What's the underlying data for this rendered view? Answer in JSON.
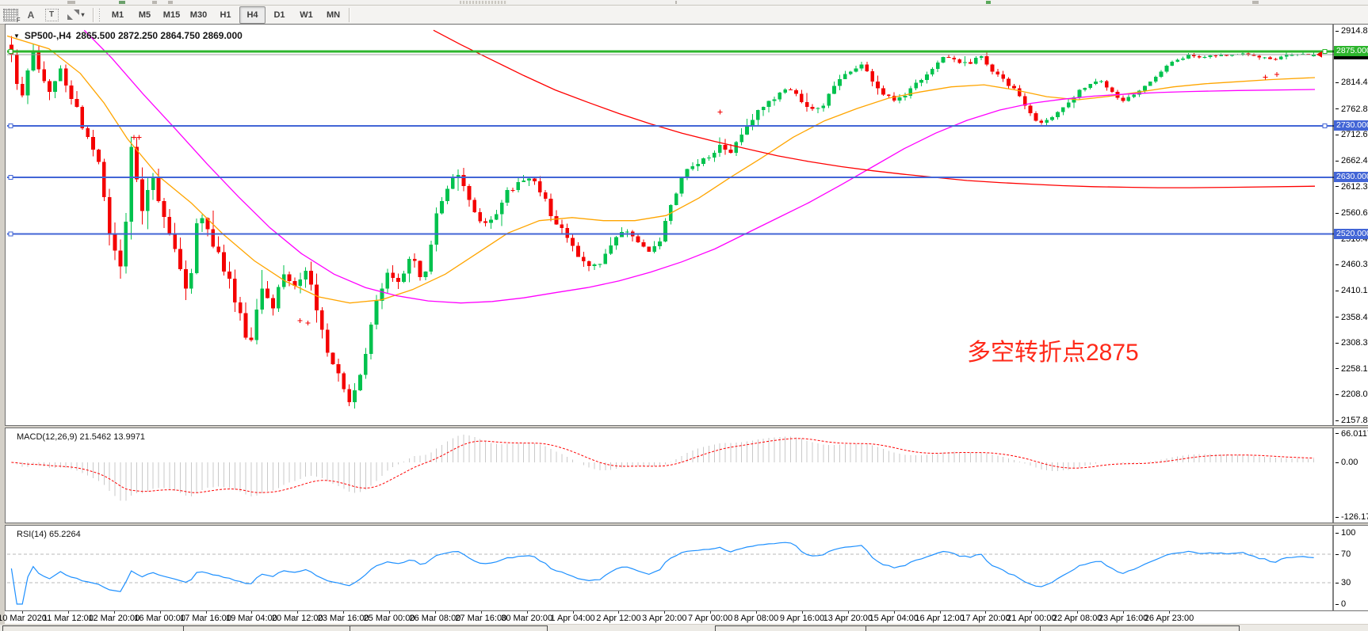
{
  "toolbar": {
    "tools": [
      {
        "name": "grid-pattern-f-icon",
        "glyph": "F"
      },
      {
        "name": "text-a-icon",
        "glyph": "A"
      },
      {
        "name": "text-label-icon",
        "glyph": "T"
      },
      {
        "name": "line-style-icon",
        "glyph": ""
      }
    ],
    "caret": "▾",
    "timeframes": [
      "M1",
      "M5",
      "M15",
      "M30",
      "H1",
      "H4",
      "D1",
      "W1",
      "MN"
    ],
    "active_timeframe": "H4"
  },
  "header": {
    "dropdown_glyph": "▼",
    "symbol_period": "SP500-,H4",
    "ohlc": "2865.500 2872.250 2864.750 2869.000"
  },
  "chart_data": {
    "type": "candlestick",
    "symbol": "SP500-",
    "period": "H4",
    "current_ohlc": {
      "open": 2865.5,
      "high": 2872.25,
      "low": 2864.75,
      "close": 2869.0
    },
    "bar_count": 240,
    "colors": {
      "bull": "#00c24e",
      "bear": "#f40000",
      "ray_green": "#2db52d",
      "ray_blue": "#4265d6",
      "last_price": "#9c9c9c",
      "ma_fast": "#ffa500",
      "ma_mid": "#ff00ff",
      "ma_slow": "#ff0000",
      "macd_hist": "#c9c9c9",
      "macd_signal": "#ff0000",
      "rsi": "#1e90ff",
      "annotation": "#ff2a1a"
    },
    "price_axis": {
      "max": 2914.81,
      "min": 2157.85,
      "ticks": [
        2914.81,
        2814.49,
        2762.81,
        2712.65,
        2662.49,
        2612.33,
        2560.65,
        2510.49,
        2460.33,
        2410.17,
        2358.49,
        2308.33,
        2258.17,
        2208.01,
        2157.85
      ]
    },
    "badges": [
      {
        "label": "2869.000",
        "price": 2869.0,
        "bg": "#000000"
      },
      {
        "label": "2875.000",
        "price": 2875.0,
        "bg": "#2db52d"
      },
      {
        "label": "2730.000",
        "price": 2730.0,
        "bg": "#4265d6"
      },
      {
        "label": "2630.000",
        "price": 2630.0,
        "bg": "#4265d6"
      },
      {
        "label": "2520.000",
        "price": 2520.0,
        "bg": "#4265d6"
      }
    ],
    "horizontal_lines": [
      {
        "price": 2875.0,
        "color": "#2db52d",
        "width": 3,
        "handles": "both"
      },
      {
        "price": 2730.0,
        "color": "#4265d6",
        "width": 2,
        "handles": "both"
      },
      {
        "price": 2630.0,
        "color": "#4265d6",
        "width": 2,
        "handles": "left"
      },
      {
        "price": 2520.0,
        "color": "#4265d6",
        "width": 2,
        "handles": "left"
      }
    ],
    "last_price_line": 2869.0,
    "close_path": [
      [
        0.0,
        2875
      ],
      [
        0.007,
        2772
      ],
      [
        0.016,
        2880
      ],
      [
        0.028,
        2800
      ],
      [
        0.038,
        2845
      ],
      [
        0.052,
        2745
      ],
      [
        0.062,
        2700
      ],
      [
        0.069,
        2640
      ],
      [
        0.077,
        2485
      ],
      [
        0.086,
        2455
      ],
      [
        0.092,
        2695
      ],
      [
        0.099,
        2560
      ],
      [
        0.107,
        2645
      ],
      [
        0.116,
        2555
      ],
      [
        0.127,
        2475
      ],
      [
        0.136,
        2405
      ],
      [
        0.144,
        2565
      ],
      [
        0.154,
        2505
      ],
      [
        0.164,
        2450
      ],
      [
        0.174,
        2375
      ],
      [
        0.183,
        2305
      ],
      [
        0.192,
        2415
      ],
      [
        0.201,
        2380
      ],
      [
        0.21,
        2440
      ],
      [
        0.219,
        2415
      ],
      [
        0.228,
        2450
      ],
      [
        0.236,
        2345
      ],
      [
        0.244,
        2285
      ],
      [
        0.253,
        2230
      ],
      [
        0.262,
        2190
      ],
      [
        0.271,
        2285
      ],
      [
        0.28,
        2395
      ],
      [
        0.289,
        2450
      ],
      [
        0.298,
        2430
      ],
      [
        0.307,
        2480
      ],
      [
        0.316,
        2425
      ],
      [
        0.325,
        2545
      ],
      [
        0.335,
        2615
      ],
      [
        0.344,
        2640
      ],
      [
        0.353,
        2572
      ],
      [
        0.362,
        2532
      ],
      [
        0.371,
        2558
      ],
      [
        0.38,
        2598
      ],
      [
        0.389,
        2618
      ],
      [
        0.398,
        2628
      ],
      [
        0.407,
        2600
      ],
      [
        0.416,
        2552
      ],
      [
        0.425,
        2522
      ],
      [
        0.435,
        2482
      ],
      [
        0.444,
        2452
      ],
      [
        0.453,
        2470
      ],
      [
        0.462,
        2508
      ],
      [
        0.471,
        2528
      ],
      [
        0.48,
        2502
      ],
      [
        0.489,
        2482
      ],
      [
        0.498,
        2508
      ],
      [
        0.507,
        2578
      ],
      [
        0.516,
        2638
      ],
      [
        0.525,
        2658
      ],
      [
        0.535,
        2668
      ],
      [
        0.544,
        2688
      ],
      [
        0.553,
        2678
      ],
      [
        0.562,
        2718
      ],
      [
        0.571,
        2748
      ],
      [
        0.58,
        2778
      ],
      [
        0.589,
        2788
      ],
      [
        0.598,
        2806
      ],
      [
        0.607,
        2778
      ],
      [
        0.616,
        2758
      ],
      [
        0.625,
        2778
      ],
      [
        0.635,
        2818
      ],
      [
        0.644,
        2838
      ],
      [
        0.653,
        2848
      ],
      [
        0.662,
        2818
      ],
      [
        0.671,
        2788
      ],
      [
        0.68,
        2778
      ],
      [
        0.689,
        2798
      ],
      [
        0.698,
        2818
      ],
      [
        0.707,
        2838
      ],
      [
        0.716,
        2866
      ],
      [
        0.725,
        2856
      ],
      [
        0.735,
        2852
      ],
      [
        0.744,
        2868
      ],
      [
        0.753,
        2838
      ],
      [
        0.762,
        2818
      ],
      [
        0.771,
        2798
      ],
      [
        0.78,
        2758
      ],
      [
        0.789,
        2736
      ],
      [
        0.798,
        2742
      ],
      [
        0.807,
        2768
      ],
      [
        0.816,
        2788
      ],
      [
        0.825,
        2808
      ],
      [
        0.835,
        2818
      ],
      [
        0.844,
        2798
      ],
      [
        0.853,
        2778
      ],
      [
        0.862,
        2788
      ],
      [
        0.871,
        2808
      ],
      [
        0.88,
        2828
      ],
      [
        0.889,
        2852
      ],
      [
        0.898,
        2862
      ],
      [
        0.907,
        2868
      ],
      [
        0.916,
        2862
      ],
      [
        0.925,
        2868
      ],
      [
        0.935,
        2866
      ],
      [
        0.944,
        2870
      ],
      [
        0.953,
        2868
      ],
      [
        0.962,
        2862
      ],
      [
        0.971,
        2860
      ],
      [
        0.98,
        2868
      ],
      [
        0.989,
        2871
      ],
      [
        1.0,
        2869
      ]
    ],
    "volatility_path": [
      [
        0,
        42
      ],
      [
        0.05,
        46
      ],
      [
        0.08,
        56
      ],
      [
        0.1,
        58
      ],
      [
        0.13,
        50
      ],
      [
        0.17,
        46
      ],
      [
        0.21,
        40
      ],
      [
        0.25,
        36
      ],
      [
        0.28,
        36
      ],
      [
        0.33,
        30
      ],
      [
        0.38,
        26
      ],
      [
        0.45,
        22
      ],
      [
        0.52,
        20
      ],
      [
        0.56,
        26
      ],
      [
        0.6,
        20
      ],
      [
        0.66,
        16
      ],
      [
        0.72,
        14
      ],
      [
        0.78,
        14
      ],
      [
        0.84,
        12
      ],
      [
        0.9,
        9
      ],
      [
        0.95,
        7
      ],
      [
        1,
        6
      ]
    ],
    "moving_averages": [
      {
        "name": "ma-fast-orange",
        "color": "#ffa500",
        "points": [
          [
            0.0,
            2905
          ],
          [
            0.032,
            2880
          ],
          [
            0.056,
            2832
          ],
          [
            0.074,
            2775
          ],
          [
            0.092,
            2705
          ],
          [
            0.116,
            2632
          ],
          [
            0.141,
            2580
          ],
          [
            0.165,
            2520
          ],
          [
            0.189,
            2468
          ],
          [
            0.213,
            2428
          ],
          [
            0.238,
            2398
          ],
          [
            0.262,
            2386
          ],
          [
            0.286,
            2392
          ],
          [
            0.31,
            2412
          ],
          [
            0.335,
            2442
          ],
          [
            0.359,
            2482
          ],
          [
            0.383,
            2522
          ],
          [
            0.407,
            2546
          ],
          [
            0.432,
            2552
          ],
          [
            0.456,
            2546
          ],
          [
            0.48,
            2546
          ],
          [
            0.504,
            2556
          ],
          [
            0.529,
            2590
          ],
          [
            0.553,
            2630
          ],
          [
            0.577,
            2668
          ],
          [
            0.601,
            2708
          ],
          [
            0.625,
            2740
          ],
          [
            0.65,
            2764
          ],
          [
            0.674,
            2784
          ],
          [
            0.698,
            2796
          ],
          [
            0.722,
            2806
          ],
          [
            0.747,
            2810
          ],
          [
            0.771,
            2800
          ],
          [
            0.795,
            2787
          ],
          [
            0.819,
            2781
          ],
          [
            0.844,
            2788
          ],
          [
            0.868,
            2797
          ],
          [
            0.892,
            2806
          ],
          [
            0.916,
            2812
          ],
          [
            0.941,
            2816
          ],
          [
            0.965,
            2820
          ],
          [
            1.0,
            2824
          ]
        ]
      },
      {
        "name": "ma-mid-magenta",
        "color": "#ff00ff",
        "points": [
          [
            0.059,
            2916
          ],
          [
            0.08,
            2862
          ],
          [
            0.104,
            2792
          ],
          [
            0.128,
            2726
          ],
          [
            0.153,
            2656
          ],
          [
            0.177,
            2592
          ],
          [
            0.201,
            2532
          ],
          [
            0.225,
            2482
          ],
          [
            0.25,
            2442
          ],
          [
            0.274,
            2416
          ],
          [
            0.298,
            2400
          ],
          [
            0.322,
            2390
          ],
          [
            0.347,
            2386
          ],
          [
            0.371,
            2389
          ],
          [
            0.395,
            2396
          ],
          [
            0.419,
            2406
          ],
          [
            0.444,
            2416
          ],
          [
            0.468,
            2429
          ],
          [
            0.492,
            2446
          ],
          [
            0.516,
            2466
          ],
          [
            0.541,
            2491
          ],
          [
            0.565,
            2521
          ],
          [
            0.589,
            2551
          ],
          [
            0.613,
            2581
          ],
          [
            0.638,
            2616
          ],
          [
            0.662,
            2651
          ],
          [
            0.686,
            2686
          ],
          [
            0.71,
            2716
          ],
          [
            0.734,
            2741
          ],
          [
            0.759,
            2761
          ],
          [
            0.783,
            2774
          ],
          [
            0.807,
            2782
          ],
          [
            0.831,
            2788
          ],
          [
            0.856,
            2792
          ],
          [
            0.88,
            2795
          ],
          [
            0.904,
            2797
          ],
          [
            0.941,
            2799
          ],
          [
            1.0,
            2801
          ]
        ]
      },
      {
        "name": "ma-slow-red",
        "color": "#ff0000",
        "points": [
          [
            0.326,
            2916
          ],
          [
            0.347,
            2888
          ],
          [
            0.371,
            2858
          ],
          [
            0.395,
            2828
          ],
          [
            0.419,
            2800
          ],
          [
            0.444,
            2776
          ],
          [
            0.468,
            2754
          ],
          [
            0.492,
            2734
          ],
          [
            0.516,
            2716
          ],
          [
            0.541,
            2700
          ],
          [
            0.565,
            2686
          ],
          [
            0.589,
            2672
          ],
          [
            0.613,
            2661
          ],
          [
            0.638,
            2651
          ],
          [
            0.662,
            2643
          ],
          [
            0.686,
            2636
          ],
          [
            0.71,
            2630
          ],
          [
            0.734,
            2624
          ],
          [
            0.759,
            2620
          ],
          [
            0.783,
            2617
          ],
          [
            0.807,
            2614
          ],
          [
            0.831,
            2612
          ],
          [
            0.856,
            2611
          ],
          [
            0.88,
            2610
          ],
          [
            0.904,
            2610
          ],
          [
            0.941,
            2611
          ],
          [
            1.0,
            2613
          ]
        ]
      }
    ],
    "markers": [
      {
        "t": 0.097,
        "price": 2708
      },
      {
        "t": 0.101,
        "price": 2708
      },
      {
        "t": 0.224,
        "price": 2352
      },
      {
        "t": 0.23,
        "price": 2347
      },
      {
        "t": 0.545,
        "price": 2757
      },
      {
        "t": 0.962,
        "price": 2825
      },
      {
        "t": 0.971,
        "price": 2830
      }
    ],
    "time_axis": {
      "labels": [
        "10 Mar 2020",
        "11 Mar 12:00",
        "12 Mar 20:00",
        "16 Mar 00:00",
        "17 Mar 16:00",
        "19 Mar 04:00",
        "20 Mar 12:00",
        "23 Mar 16:00",
        "25 Mar 00:00",
        "26 Mar 08:00",
        "27 Mar 16:00",
        "30 Mar 20:00",
        "1 Apr 04:00",
        "2 Apr 12:00",
        "3 Apr 20:00",
        "7 Apr 00:00",
        "8 Apr 08:00",
        "9 Apr 16:00",
        "13 Apr 20:00",
        "15 Apr 04:00",
        "16 Apr 12:00",
        "17 Apr 20:00",
        "21 Apr 00:00",
        "22 Apr 08:00",
        "23 Apr 16:00",
        "26 Apr 23:00"
      ]
    },
    "indicators": {
      "macd": {
        "label": "MACD(12,26,9) 21.5462 13.9971",
        "fast": 12,
        "slow": 26,
        "signal": 9,
        "current_main": 21.5462,
        "current_signal": 13.9971,
        "axis_ticks": [
          {
            "v": 66.0117,
            "label": "66.0117"
          },
          {
            "v": 0,
            "label": "0.00"
          },
          {
            "v": -126.173,
            "label": "-126.173"
          }
        ]
      },
      "rsi": {
        "label": "RSI(14) 65.2264",
        "period": 14,
        "current": 65.2264,
        "axis_ticks": [
          {
            "v": 100,
            "label": "100"
          },
          {
            "v": 70,
            "label": "70"
          },
          {
            "v": 30,
            "label": "30"
          },
          {
            "v": 0,
            "label": "0"
          }
        ],
        "levels": [
          70,
          30
        ]
      }
    },
    "annotation": {
      "text": "多空转折点2875",
      "color": "#ff2a1a"
    }
  }
}
